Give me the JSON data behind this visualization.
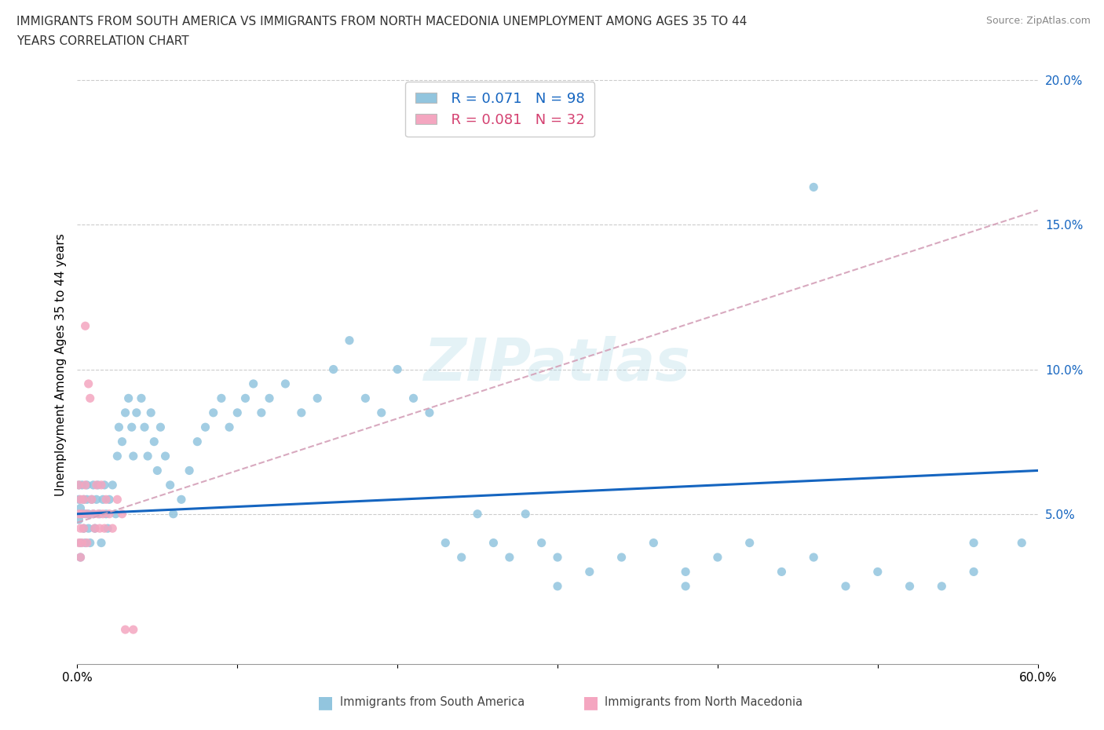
{
  "title_line1": "IMMIGRANTS FROM SOUTH AMERICA VS IMMIGRANTS FROM NORTH MACEDONIA UNEMPLOYMENT AMONG AGES 35 TO 44",
  "title_line2": "YEARS CORRELATION CHART",
  "source": "Source: ZipAtlas.com",
  "ylabel": "Unemployment Among Ages 35 to 44 years",
  "xlim": [
    0.0,
    0.6
  ],
  "ylim": [
    -0.002,
    0.205
  ],
  "color_sa": "#92c5de",
  "color_nm": "#f4a6c0",
  "trendline_sa_color": "#1565c0",
  "trendline_nm_color": "#d4a0b8",
  "R_sa": 0.071,
  "N_sa": 98,
  "R_nm": 0.081,
  "N_nm": 32,
  "watermark": "ZIPatlas",
  "sa_x": [
    0.001,
    0.001,
    0.001,
    0.002,
    0.002,
    0.002,
    0.003,
    0.003,
    0.004,
    0.004,
    0.005,
    0.005,
    0.006,
    0.006,
    0.007,
    0.007,
    0.008,
    0.009,
    0.01,
    0.01,
    0.011,
    0.012,
    0.013,
    0.014,
    0.015,
    0.016,
    0.017,
    0.018,
    0.019,
    0.02,
    0.022,
    0.024,
    0.025,
    0.026,
    0.028,
    0.03,
    0.032,
    0.034,
    0.035,
    0.037,
    0.04,
    0.042,
    0.044,
    0.046,
    0.048,
    0.05,
    0.052,
    0.055,
    0.058,
    0.06,
    0.065,
    0.07,
    0.075,
    0.08,
    0.085,
    0.09,
    0.095,
    0.1,
    0.105,
    0.11,
    0.115,
    0.12,
    0.13,
    0.14,
    0.15,
    0.16,
    0.17,
    0.18,
    0.19,
    0.2,
    0.21,
    0.22,
    0.23,
    0.24,
    0.25,
    0.26,
    0.27,
    0.28,
    0.29,
    0.3,
    0.32,
    0.34,
    0.36,
    0.38,
    0.4,
    0.42,
    0.44,
    0.46,
    0.48,
    0.5,
    0.52,
    0.54,
    0.56,
    0.46,
    0.38,
    0.3,
    0.56,
    0.59
  ],
  "sa_y": [
    0.055,
    0.048,
    0.06,
    0.04,
    0.052,
    0.035,
    0.05,
    0.06,
    0.045,
    0.055,
    0.05,
    0.04,
    0.055,
    0.06,
    0.045,
    0.05,
    0.04,
    0.055,
    0.05,
    0.06,
    0.045,
    0.055,
    0.06,
    0.05,
    0.04,
    0.055,
    0.06,
    0.05,
    0.045,
    0.055,
    0.06,
    0.05,
    0.07,
    0.08,
    0.075,
    0.085,
    0.09,
    0.08,
    0.07,
    0.085,
    0.09,
    0.08,
    0.07,
    0.085,
    0.075,
    0.065,
    0.08,
    0.07,
    0.06,
    0.05,
    0.055,
    0.065,
    0.075,
    0.08,
    0.085,
    0.09,
    0.08,
    0.085,
    0.09,
    0.095,
    0.085,
    0.09,
    0.095,
    0.085,
    0.09,
    0.1,
    0.11,
    0.09,
    0.085,
    0.1,
    0.09,
    0.085,
    0.04,
    0.035,
    0.05,
    0.04,
    0.035,
    0.05,
    0.04,
    0.035,
    0.03,
    0.035,
    0.04,
    0.03,
    0.035,
    0.04,
    0.03,
    0.035,
    0.025,
    0.03,
    0.025,
    0.025,
    0.03,
    0.163,
    0.025,
    0.025,
    0.04,
    0.04
  ],
  "nm_x": [
    0.001,
    0.001,
    0.001,
    0.002,
    0.002,
    0.002,
    0.003,
    0.003,
    0.004,
    0.004,
    0.005,
    0.005,
    0.006,
    0.006,
    0.007,
    0.008,
    0.009,
    0.01,
    0.011,
    0.012,
    0.013,
    0.014,
    0.015,
    0.016,
    0.017,
    0.018,
    0.02,
    0.022,
    0.025,
    0.028,
    0.03,
    0.035
  ],
  "nm_y": [
    0.05,
    0.04,
    0.06,
    0.045,
    0.055,
    0.035,
    0.05,
    0.04,
    0.055,
    0.045,
    0.115,
    0.06,
    0.05,
    0.04,
    0.095,
    0.09,
    0.055,
    0.05,
    0.045,
    0.06,
    0.05,
    0.045,
    0.06,
    0.05,
    0.045,
    0.055,
    0.05,
    0.045,
    0.055,
    0.05,
    0.01,
    0.01
  ],
  "trendline_sa_x0": 0.0,
  "trendline_sa_x1": 0.6,
  "trendline_sa_y0": 0.05,
  "trendline_sa_y1": 0.065,
  "trendline_nm_x0": 0.0,
  "trendline_nm_x1": 0.6,
  "trendline_nm_y0": 0.047,
  "trendline_nm_y1": 0.155
}
